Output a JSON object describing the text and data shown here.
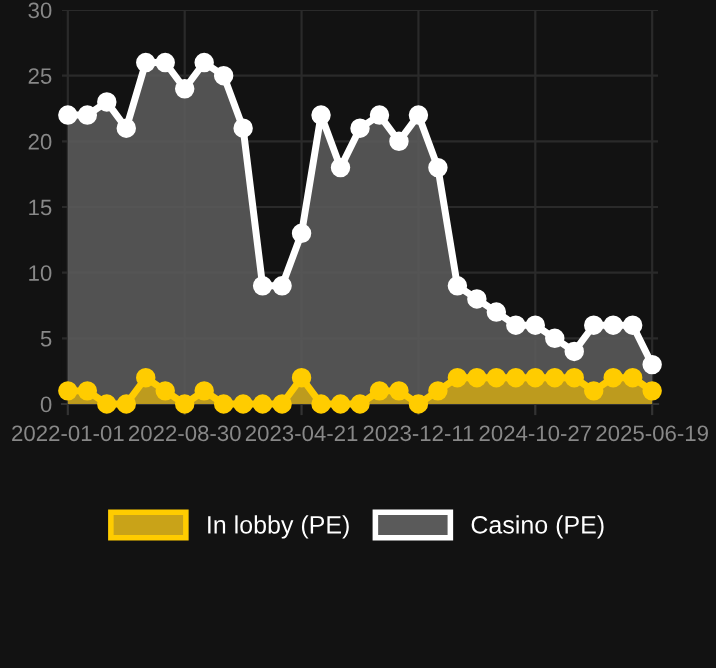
{
  "chart_data": {
    "type": "area",
    "categories": [
      "2022-01-01",
      null,
      null,
      null,
      null,
      null,
      "2022-08-30",
      null,
      null,
      null,
      null,
      null,
      "2023-04-21",
      null,
      null,
      null,
      null,
      null,
      "2023-12-11",
      null,
      null,
      null,
      null,
      null,
      "2024-10-27",
      null,
      null,
      null,
      null,
      null,
      "2025-06-19"
    ],
    "series": [
      {
        "name": "Casino (PE)",
        "color": "#ffffff",
        "values": [
          22,
          22,
          23,
          21,
          26,
          26,
          24,
          26,
          25,
          21,
          9,
          9,
          13,
          22,
          18,
          21,
          22,
          20,
          22,
          18,
          9,
          8,
          7,
          6,
          6,
          5,
          4,
          6,
          6,
          6,
          3
        ]
      },
      {
        "name": "In lobby (PE)",
        "color": "#ffcc00",
        "values": [
          1,
          1,
          0,
          0,
          2,
          1,
          0,
          1,
          0,
          0,
          0,
          0,
          2,
          0,
          0,
          0,
          1,
          1,
          0,
          1,
          2,
          2,
          2,
          2,
          2,
          2,
          2,
          1,
          2,
          2,
          1
        ]
      }
    ],
    "ylim": [
      0,
      30
    ],
    "yticks": [
      0,
      5,
      10,
      15,
      20,
      25,
      30
    ],
    "grid": true,
    "legend": "bottom",
    "marker": "circle",
    "line_style": "solid"
  }
}
